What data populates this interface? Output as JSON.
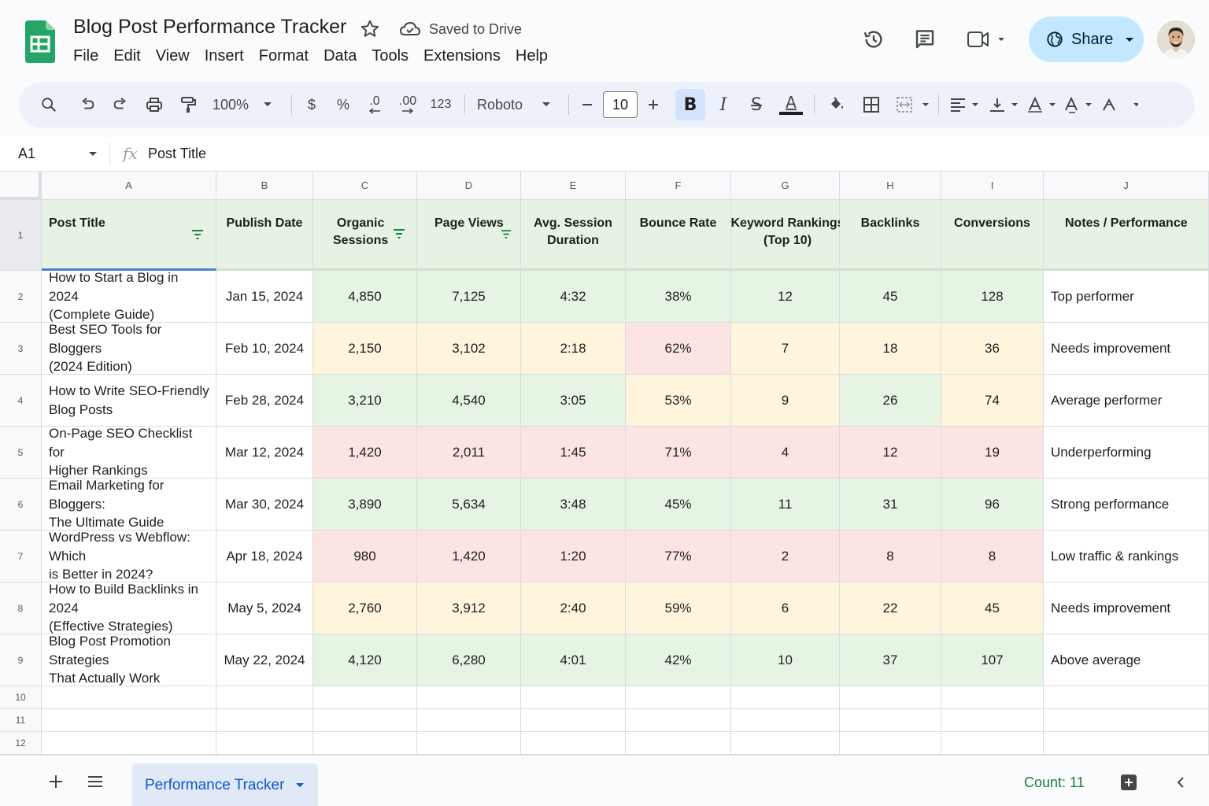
{
  "app": {
    "title": "Blog Post Performance Tracker",
    "save_status": "Saved to Drive",
    "menu": [
      "File",
      "Edit",
      "View",
      "Insert",
      "Format",
      "Data",
      "Tools",
      "Extensions",
      "Help"
    ],
    "share_label": "Share",
    "icons": [
      "sheets-logo-icon",
      "star-icon",
      "cloud-saved-icon",
      "version-history-icon",
      "comments-icon",
      "meet-icon",
      "globe-icon",
      "avatar"
    ]
  },
  "toolbar": {
    "zoom": "100%",
    "currency": "$",
    "percent": "%",
    "decrease_decimal": ".0",
    "increase_decimal": ".00",
    "format_number": "123",
    "font": "Roboto",
    "font_size": "10",
    "bold": "B",
    "italic": "I",
    "strike": "S",
    "text_color_letter": "A",
    "accent_color": "#0b57d0"
  },
  "formula_bar": {
    "cell_ref": "A1",
    "fx": "fx",
    "content": "Post Title"
  },
  "sheet": {
    "column_letters": [
      "A",
      "B",
      "C",
      "D",
      "E",
      "F",
      "G",
      "H",
      "I",
      "J"
    ],
    "header_row": {
      "post_title": "Post Title",
      "publish_date": "Publish Date",
      "organic_l1": "Organic",
      "organic_l2": "Sessions",
      "page_views": "Page Views",
      "avg_l1": "Avg. Session",
      "avg_l2": "Duration",
      "bounce_rate": "Bounce Rate",
      "kw_l1": "Keyword Rankings",
      "kw_l2": "(Top 10)",
      "backlinks": "Backlinks",
      "conversions": "Conversions",
      "notes": "Notes / Performance"
    },
    "rows": [
      {
        "num": "2",
        "title_l1": "How to Start a Blog in 2024",
        "title_l2": "(Complete Guide)",
        "date": "Jan 15, 2024",
        "sessions": "4,850",
        "views": "7,125",
        "duration": "4:32",
        "bounce": "38%",
        "keywords": "12",
        "backlinks": "45",
        "conversions": "128",
        "notes": "Top performer"
      },
      {
        "num": "3",
        "title_l1": "Best SEO Tools for Bloggers",
        "title_l2": "(2024 Edition)",
        "date": "Feb 10, 2024",
        "sessions": "2,150",
        "views": "3,102",
        "duration": "2:18",
        "bounce": "62%",
        "keywords": "7",
        "backlinks": "18",
        "conversions": "36",
        "notes": "Needs improvement"
      },
      {
        "num": "4",
        "title_l1": "How to Write SEO-Friendly",
        "title_l2": "Blog Posts",
        "date": "Feb 28, 2024",
        "sessions": "3,210",
        "views": "4,540",
        "duration": "3:05",
        "bounce": "53%",
        "keywords": "9",
        "backlinks": "26",
        "conversions": "74",
        "notes": "Average performer"
      },
      {
        "num": "5",
        "title_l1": "On-Page SEO Checklist for",
        "title_l2": "Higher Rankings",
        "date": "Mar 12, 2024",
        "sessions": "1,420",
        "views": "2,011",
        "duration": "1:45",
        "bounce": "71%",
        "keywords": "4",
        "backlinks": "12",
        "conversions": "19",
        "notes": "Underperforming"
      },
      {
        "num": "6",
        "title_l1": "Email Marketing for Bloggers:",
        "title_l2": "The Ultimate Guide",
        "date": "Mar 30, 2024",
        "sessions": "3,890",
        "views": "5,634",
        "duration": "3:48",
        "bounce": "45%",
        "keywords": "11",
        "backlinks": "31",
        "conversions": "96",
        "notes": "Strong performance"
      },
      {
        "num": "7",
        "title_l1": "WordPress vs Webflow: Which",
        "title_l2": "is Better in 2024?",
        "date": "Apr 18, 2024",
        "sessions": "980",
        "views": "1,420",
        "duration": "1:20",
        "bounce": "77%",
        "keywords": "2",
        "backlinks": "8",
        "conversions": "8",
        "notes": "Low traffic & rankings"
      },
      {
        "num": "8",
        "title_l1": "How to Build Backlinks in 2024",
        "title_l2": "(Effective Strategies)",
        "date": "May 5, 2024",
        "sessions": "2,760",
        "views": "3,912",
        "duration": "2:40",
        "bounce": "59%",
        "keywords": "6",
        "backlinks": "22",
        "conversions": "45",
        "notes": "Needs improvement"
      },
      {
        "num": "9",
        "title_l1": "Blog Post Promotion Strategies",
        "title_l2": "That Actually Work",
        "date": "May 22, 2024",
        "sessions": "4,120",
        "views": "6,280",
        "duration": "4:01",
        "bounce": "42%",
        "keywords": "10",
        "backlinks": "37",
        "conversions": "107",
        "notes": "Above average"
      }
    ],
    "empty_rows": [
      "10",
      "11",
      "12"
    ],
    "header_row_num": "1",
    "colors": {
      "header_fill": "#e6f2e3",
      "good": "#e6f4e4",
      "medium": "#fef5dc",
      "bad": "#fbe4e1"
    }
  },
  "bottom": {
    "sheet_tab": "Performance Tracker",
    "status": "Count: 11"
  }
}
